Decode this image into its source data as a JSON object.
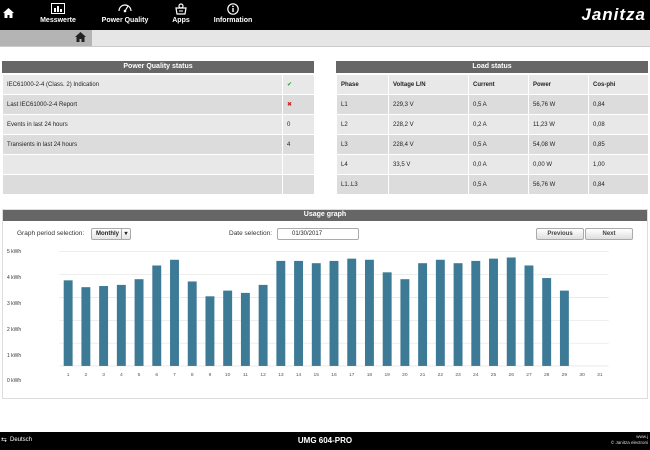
{
  "nav": {
    "items": [
      {
        "label": "Messwerte",
        "icon": "measurements-icon"
      },
      {
        "label": "Power Quality",
        "icon": "power-quality-icon"
      },
      {
        "label": "Apps",
        "icon": "apps-icon"
      },
      {
        "label": "Information",
        "icon": "information-icon"
      }
    ],
    "logo": "Janitza"
  },
  "pq": {
    "title": "Power Quality status",
    "rows": [
      {
        "label": "IEC61000-2-4 (Class. 2) Indication",
        "value": "✔",
        "status": "ok"
      },
      {
        "label": "Last IEC61000-2-4 Report",
        "value": "✖",
        "status": "bad"
      },
      {
        "label": "Events in last 24 hours",
        "value": "0"
      },
      {
        "label": "Transients in last 24 hours",
        "value": "4"
      },
      {
        "label": "",
        "value": ""
      },
      {
        "label": "",
        "value": ""
      }
    ]
  },
  "load": {
    "title": "Load status",
    "headers": [
      "Phase",
      "Voltage L/N",
      "Current",
      "Power",
      "Cos-phi"
    ],
    "rows": [
      [
        "L1",
        "229,3 V",
        "0,5 A",
        "56,76 W",
        "0,84"
      ],
      [
        "L2",
        "228,2 V",
        "0,2 A",
        "11,23 W",
        "0,08"
      ],
      [
        "L3",
        "228,4 V",
        "0,5 A",
        "54,08 W",
        "0,85"
      ],
      [
        "L4",
        "33,5 V",
        "0,0 A",
        "0,00 W",
        "1,00"
      ],
      [
        "L1..L3",
        "",
        "0,5 A",
        "56,76 W",
        "0,84"
      ]
    ]
  },
  "usage": {
    "title": "Usage graph",
    "period_label": "Graph period selection:",
    "period_value": "Monthly",
    "date_label": "Date selection:",
    "date_value": "01/30/2017",
    "prev": "Previous",
    "next": "Next"
  },
  "chart_data": {
    "type": "bar",
    "categories": [
      "1",
      "2",
      "3",
      "4",
      "5",
      "6",
      "7",
      "8",
      "9",
      "10",
      "11",
      "12",
      "13",
      "14",
      "15",
      "16",
      "17",
      "18",
      "19",
      "20",
      "21",
      "22",
      "23",
      "24",
      "25",
      "26",
      "27",
      "28",
      "29",
      "30",
      "31"
    ],
    "values": [
      3.75,
      3.45,
      3.5,
      3.55,
      3.8,
      4.4,
      4.65,
      3.7,
      3.05,
      3.3,
      3.2,
      3.55,
      4.6,
      4.6,
      4.5,
      4.6,
      4.7,
      4.65,
      4.1,
      3.8,
      4.5,
      4.65,
      4.5,
      4.6,
      4.7,
      4.75,
      4.4,
      3.85,
      3.3,
      0,
      0
    ],
    "ytick_labels": [
      "5 kWh",
      "4 kWh",
      "3 kWh",
      "2 kWh",
      "1 kWh",
      "0 kWh"
    ],
    "ylim": [
      0,
      5
    ],
    "bar_color": "#3d7a96",
    "grid": true
  },
  "footer": {
    "language": "Deutsch",
    "device": "UMG 604-PRO",
    "line1": "www.j",
    "line2": "© Janitza electroni"
  }
}
